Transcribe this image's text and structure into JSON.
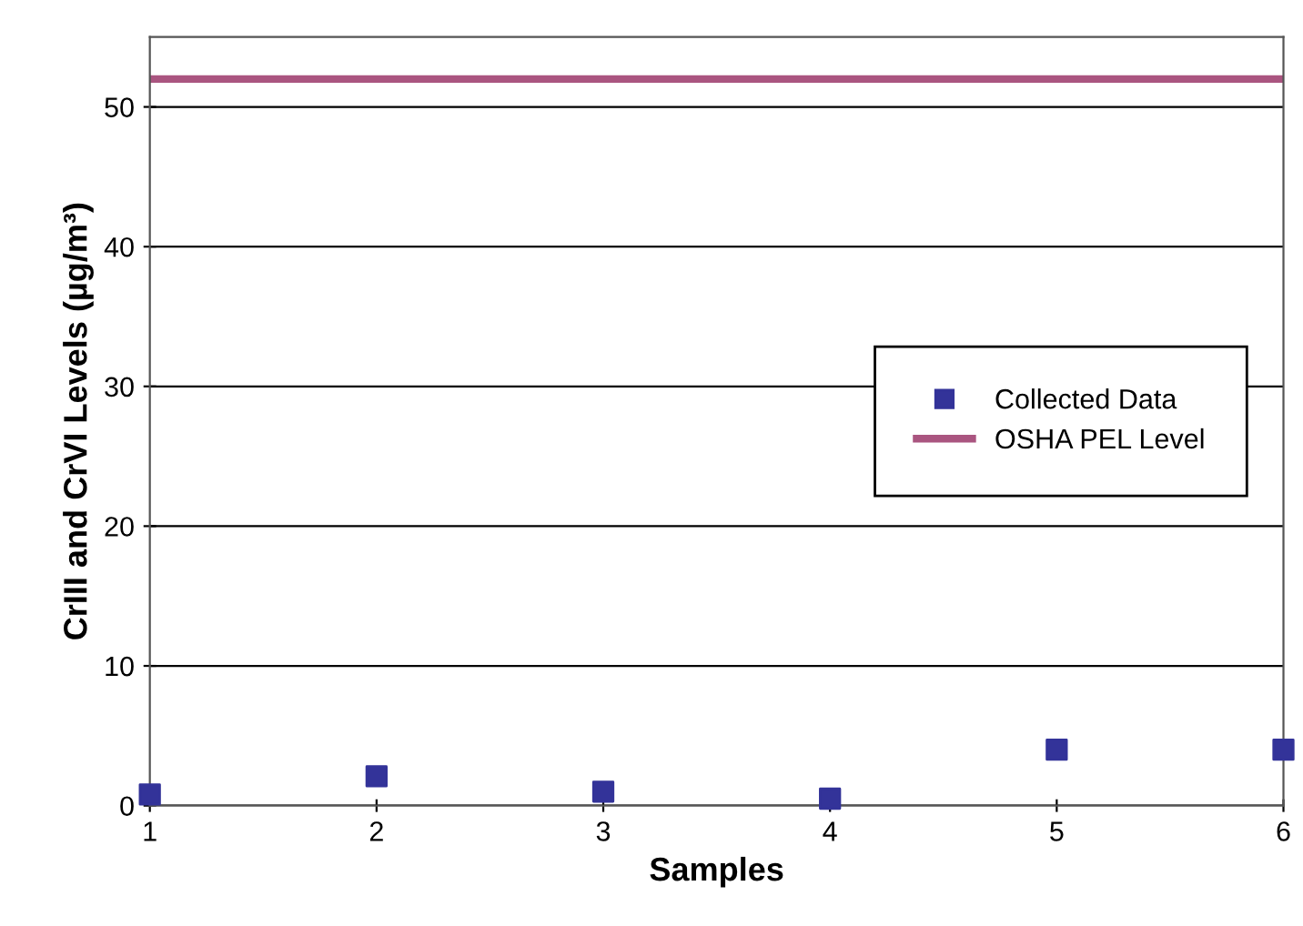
{
  "chart_data": {
    "type": "scatter",
    "xlabel": "Samples",
    "ylabel": "CrIII and CrVI Levels (µg/m³)",
    "x": [
      1,
      2,
      3,
      4,
      5,
      6
    ],
    "series": [
      {
        "name": "Collected Data",
        "color": "#333399",
        "marker": "square",
        "values": [
          0.8,
          2.1,
          1.0,
          0.5,
          4.0,
          4.0
        ]
      },
      {
        "name": "OSHA PEL Level",
        "type": "line",
        "color": "#aa5580",
        "marker": "none",
        "line_style": "solid",
        "values": [
          52,
          52,
          52,
          52,
          52,
          52
        ]
      }
    ],
    "xlim": [
      1,
      6
    ],
    "xticks": [
      1,
      2,
      3,
      4,
      5,
      6
    ],
    "ylim": [
      0,
      55
    ],
    "yticks": [
      0,
      10,
      20,
      30,
      40,
      50
    ],
    "grid": "y",
    "legend": "right"
  }
}
